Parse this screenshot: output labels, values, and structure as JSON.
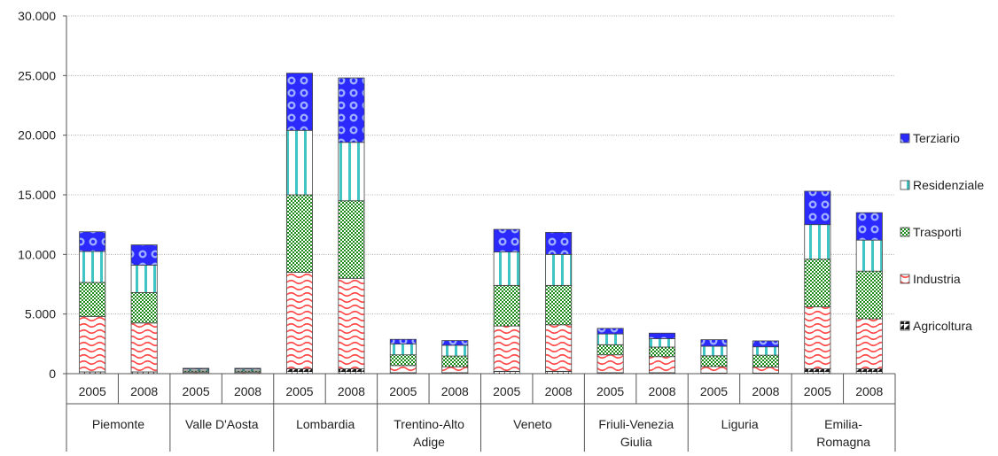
{
  "chart_data": {
    "type": "bar",
    "stacked": true,
    "y_tick_labels": [
      "0",
      "5.000",
      "10.000",
      "15.000",
      "20.000",
      "25.000",
      "30.000"
    ],
    "ylim": [
      0,
      30000
    ],
    "grid": true,
    "legend_position": "right",
    "regions": [
      "Piemonte",
      "Valle D'Aosta",
      "Lombardia",
      "Trentino-Alto Adige",
      "Veneto",
      "Friuli-Venezia Giulia",
      "Liguria",
      "Emilia-Romagna"
    ],
    "years": [
      "2005",
      "2008"
    ],
    "categories": [
      "Piemonte 2005",
      "Piemonte 2008",
      "Valle D'Aosta 2005",
      "Valle D'Aosta 2008",
      "Lombardia 2005",
      "Lombardia 2008",
      "Trentino-Alto Adige 2005",
      "Trentino-Alto Adige 2008",
      "Veneto 2005",
      "Veneto 2008",
      "Friuli-Venezia Giulia 2005",
      "Friuli-Venezia Giulia 2008",
      "Liguria 2005",
      "Liguria 2008",
      "Emilia-Romagna 2005",
      "Emilia-Romagna 2008"
    ],
    "series": [
      {
        "name": "Agricoltura",
        "color": "#1a1a1a",
        "values": [
          150,
          150,
          30,
          30,
          400,
          400,
          80,
          80,
          200,
          200,
          80,
          80,
          50,
          50,
          400,
          400
        ]
      },
      {
        "name": "Industria",
        "color": "#ff4040",
        "values": [
          4650,
          4100,
          100,
          100,
          8100,
          7600,
          600,
          500,
          3800,
          3900,
          1500,
          1350,
          550,
          500,
          5200,
          4200
        ]
      },
      {
        "name": "Trasporti",
        "color": "#1a8a1a",
        "values": [
          2850,
          2550,
          100,
          100,
          6500,
          6500,
          900,
          900,
          3400,
          3300,
          850,
          800,
          900,
          1000,
          4000,
          4000
        ]
      },
      {
        "name": "Residenziale",
        "color": "#40c0c0",
        "values": [
          2600,
          2300,
          150,
          150,
          5400,
          4900,
          900,
          900,
          2800,
          2600,
          900,
          700,
          800,
          700,
          2900,
          2600
        ]
      },
      {
        "name": "Terziario",
        "color": "#2020ff",
        "values": [
          1650,
          1700,
          70,
          70,
          4800,
          5400,
          400,
          400,
          1900,
          1850,
          470,
          470,
          550,
          500,
          2800,
          2300
        ]
      }
    ]
  }
}
